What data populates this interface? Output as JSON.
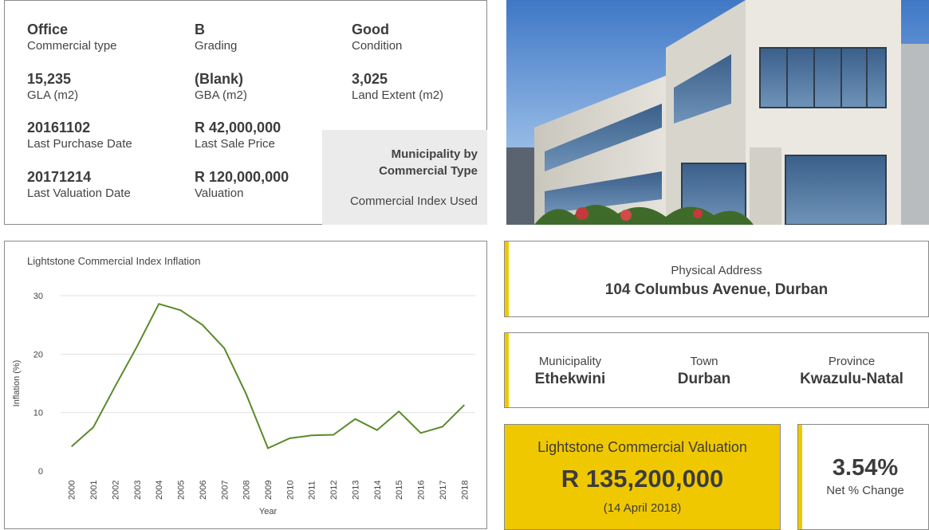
{
  "details": {
    "commercial_type": {
      "value": "Office",
      "label": "Commercial type"
    },
    "grading": {
      "value": "B",
      "label": "Grading"
    },
    "condition": {
      "value": "Good",
      "label": "Condition"
    },
    "gla": {
      "value": "15,235",
      "label": "GLA (m2)"
    },
    "gba": {
      "value": "(Blank)",
      "label": "GBA (m2)"
    },
    "land_extent": {
      "value": "3,025",
      "label": "Land Extent (m2)"
    },
    "last_purchase_date": {
      "value": "20161102",
      "label": "Last Purchase Date"
    },
    "last_sale_price": {
      "value": "R 42,000,000",
      "label": "Last Sale Price"
    },
    "last_valuation_date": {
      "value": "20171214",
      "label": "Last Valuation Date"
    },
    "valuation": {
      "value": "R 120,000,000",
      "label": "Valuation"
    },
    "index_box": {
      "title_line1": "Municipality by",
      "title_line2": "Commercial Type",
      "subtitle": "Commercial Index Used"
    }
  },
  "address": {
    "label": "Physical Address",
    "value": "104 Columbus Avenue, Durban"
  },
  "location": {
    "municipality": {
      "label": "Municipality",
      "value": "Ethekwini"
    },
    "town": {
      "label": "Town",
      "value": "Durban"
    },
    "province": {
      "label": "Province",
      "value": "Kwazulu-Natal"
    }
  },
  "valuation_summary": {
    "title": "Lightstone Commercial Valuation",
    "amount": "R 135,200,000",
    "date": "(14 April 2018)"
  },
  "net_change": {
    "value": "3.54%",
    "label": "Net % Change"
  },
  "colors": {
    "accent": "#f0c800",
    "line": "#5a8a2a",
    "grid": "#e0e0e0",
    "border": "#8a8a8a"
  },
  "chart_data": {
    "type": "line",
    "title": "Lightstone Commercial Index Inflation",
    "xlabel": "Year",
    "ylabel": "Inflation (%)",
    "ylim": [
      0,
      30
    ],
    "yticks": [
      0,
      10,
      20,
      30
    ],
    "grid": true,
    "categories": [
      "2000",
      "2001",
      "2002",
      "2003",
      "2004",
      "2005",
      "2006",
      "2007",
      "2008",
      "2009",
      "2010",
      "2011",
      "2012",
      "2013",
      "2014",
      "2015",
      "2016",
      "2017",
      "2018"
    ],
    "values": [
      4.2,
      7.5,
      14.5,
      21.3,
      28.6,
      27.5,
      25.0,
      21.0,
      13.2,
      3.9,
      5.6,
      6.1,
      6.2,
      8.9,
      7.0,
      10.2,
      6.5,
      7.6,
      11.3
    ]
  }
}
